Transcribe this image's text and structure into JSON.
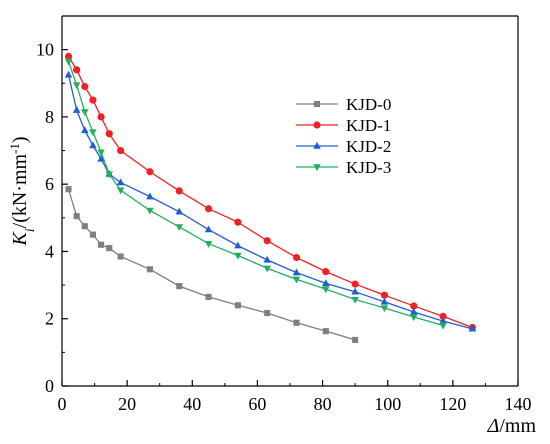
{
  "chart_data": {
    "type": "line",
    "xlabel": "Δ/mm",
    "ylabel": "Ki/(kN·mm-1)",
    "xlim": [
      0,
      140
    ],
    "ylim": [
      0,
      11
    ],
    "x_ticks": [
      0,
      20,
      40,
      60,
      80,
      100,
      120,
      140
    ],
    "y_ticks": [
      0,
      2,
      4,
      6,
      8,
      10
    ],
    "x_tick_labels": [
      "0",
      "20",
      "40",
      "60",
      "80",
      "100",
      "120",
      "140"
    ],
    "y_tick_labels": [
      "0",
      "2",
      "4",
      "6",
      "8",
      "10"
    ],
    "legend": "upper-right",
    "series": [
      {
        "name": "KJD-0",
        "color": "#7f7f7f",
        "marker": "square",
        "x": [
          2,
          4.5,
          7,
          9.5,
          12,
          14.5,
          18,
          27,
          36,
          45,
          54,
          63,
          72,
          81,
          90
        ],
        "y": [
          5.85,
          5.05,
          4.75,
          4.5,
          4.2,
          4.1,
          3.85,
          3.47,
          2.97,
          2.65,
          2.4,
          2.17,
          1.88,
          1.63,
          1.37
        ]
      },
      {
        "name": "KJD-1",
        "color": "#ee2222",
        "marker": "circle",
        "x": [
          2,
          4.5,
          7,
          9.5,
          12,
          14.5,
          18,
          27,
          36,
          45,
          54,
          63,
          72,
          81,
          90,
          99,
          108,
          117,
          126
        ],
        "y": [
          9.8,
          9.4,
          8.9,
          8.5,
          8.0,
          7.5,
          7.0,
          6.37,
          5.8,
          5.27,
          4.87,
          4.32,
          3.82,
          3.4,
          3.03,
          2.7,
          2.38,
          2.07,
          1.74
        ]
      },
      {
        "name": "KJD-2",
        "color": "#1f5fd0",
        "marker": "triangle-up",
        "x": [
          2,
          4.5,
          7,
          9.5,
          12,
          14.5,
          18,
          27,
          36,
          45,
          54,
          63,
          72,
          81,
          90,
          99,
          108,
          117,
          126
        ],
        "y": [
          9.25,
          8.2,
          7.6,
          7.15,
          6.75,
          6.3,
          6.05,
          5.63,
          5.18,
          4.65,
          4.17,
          3.75,
          3.37,
          3.05,
          2.8,
          2.5,
          2.2,
          1.93,
          1.7
        ]
      },
      {
        "name": "KJD-3",
        "color": "#22b060",
        "marker": "triangle-down",
        "x": [
          2,
          4.5,
          7,
          9.5,
          12,
          14.5,
          18,
          27,
          36,
          45,
          54,
          63,
          72,
          81,
          90,
          99,
          108,
          117
        ],
        "y": [
          9.65,
          8.95,
          8.15,
          7.55,
          6.95,
          6.3,
          5.82,
          5.22,
          4.73,
          4.23,
          3.88,
          3.5,
          3.17,
          2.88,
          2.57,
          2.32,
          2.05,
          1.8
        ]
      }
    ]
  }
}
